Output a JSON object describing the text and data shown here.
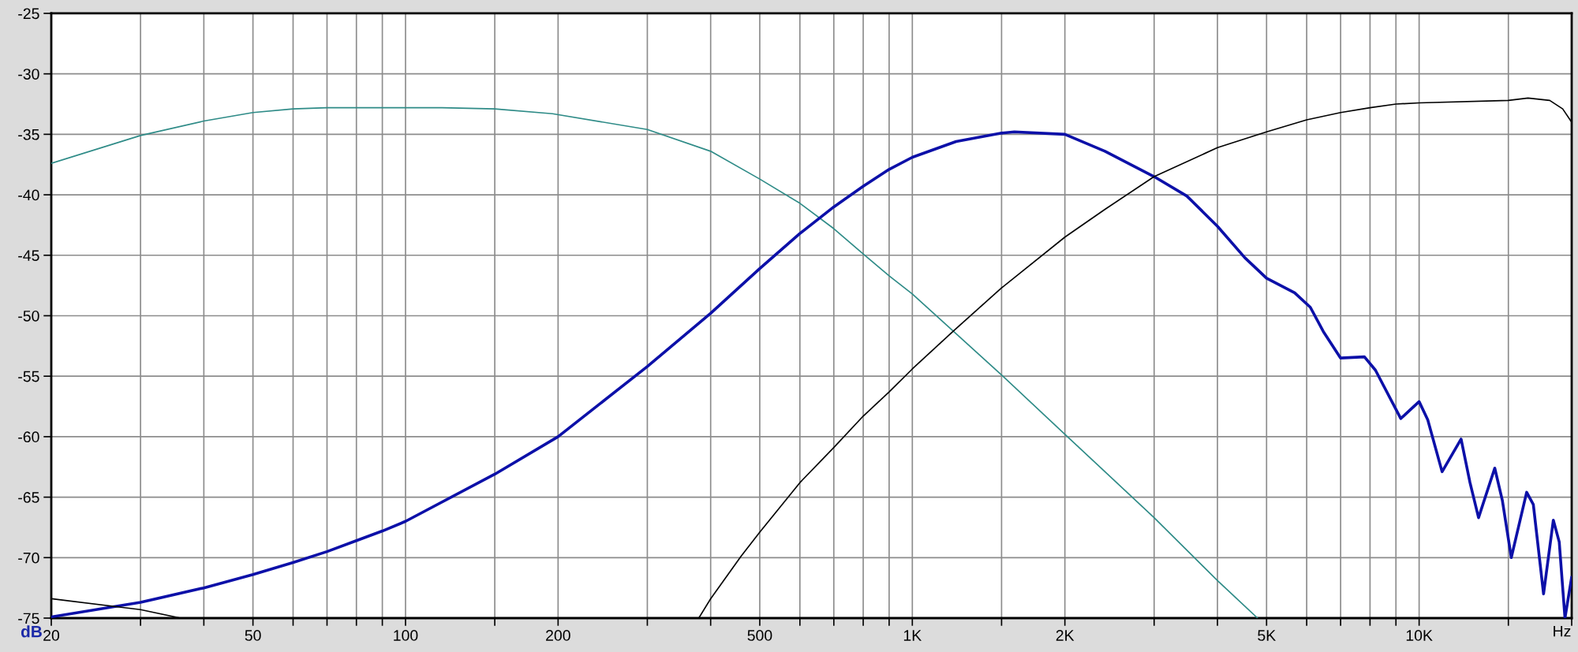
{
  "chart_data": {
    "type": "line",
    "xlabel": "Hz",
    "ylabel": "dB",
    "log": "x",
    "grid": true,
    "xlim": [
      20,
      20000
    ],
    "ylim": [
      -75,
      -25
    ],
    "xticks": [
      20,
      {
        "value": 30,
        "label": null
      },
      {
        "value": 40,
        "label": null
      },
      50,
      {
        "value": 60,
        "label": null
      },
      {
        "value": 70,
        "label": null
      },
      {
        "value": 80,
        "label": null
      },
      {
        "value": 90,
        "label": null
      },
      100,
      {
        "value": 150,
        "label": null
      },
      200,
      {
        "value": 300,
        "label": null
      },
      {
        "value": 400,
        "label": null
      },
      500,
      {
        "value": 600,
        "label": null
      },
      {
        "value": 700,
        "label": null
      },
      {
        "value": 800,
        "label": null
      },
      {
        "value": 900,
        "label": null
      },
      {
        "value": 1000,
        "label": "1K"
      },
      {
        "value": 1500,
        "label": null
      },
      {
        "value": 2000,
        "label": "2K"
      },
      {
        "value": 3000,
        "label": null
      },
      {
        "value": 4000,
        "label": null
      },
      {
        "value": 5000,
        "label": "5K"
      },
      {
        "value": 6000,
        "label": null
      },
      {
        "value": 7000,
        "label": null
      },
      {
        "value": 8000,
        "label": null
      },
      {
        "value": 9000,
        "label": null
      },
      {
        "value": 10000,
        "label": "10K"
      },
      {
        "value": 15000,
        "label": null
      },
      {
        "value": 20000,
        "label": null
      }
    ],
    "yticks": [
      -25,
      -30,
      -35,
      -40,
      -45,
      -50,
      -55,
      -60,
      -65,
      -70,
      -75
    ],
    "series": [
      {
        "color": "#2e8b87",
        "x": [
          20,
          30,
          40,
          50,
          60,
          70,
          100,
          118,
          150,
          195,
          300,
          400,
          500,
          600,
          700,
          800,
          900,
          1000,
          1500,
          2000,
          2400,
          3000,
          4000,
          4800
        ],
        "values": [
          -37.4,
          -35.1,
          -33.9,
          -33.2,
          -32.9,
          -32.8,
          -32.8,
          -32.8,
          -32.9,
          -33.3,
          -34.6,
          -36.4,
          -38.7,
          -40.7,
          -42.8,
          -44.9,
          -46.7,
          -48.2,
          -54.9,
          -59.8,
          -62.9,
          -66.7,
          -71.9,
          -75
        ]
      },
      {
        "color": "#0c10a8",
        "x": [
          20,
          30,
          40,
          50,
          60,
          70,
          80,
          90,
          100,
          150,
          200,
          300,
          400,
          500,
          600,
          700,
          800,
          900,
          1000,
          1220,
          1500,
          1590,
          2000,
          2400,
          3000,
          3480,
          4000,
          4530,
          5000,
          5680,
          6100,
          6470,
          7000,
          7800,
          8200,
          9200,
          10000,
          10400,
          11100,
          12100,
          12600,
          13100,
          14100,
          14600,
          15200,
          16300,
          16800,
          17600,
          18400,
          18900,
          19400,
          20000
        ],
        "values": [
          -74.9,
          -73.7,
          -72.5,
          -71.4,
          -70.4,
          -69.5,
          -68.6,
          -67.8,
          -67.0,
          -63.1,
          -60.0,
          -54.2,
          -49.8,
          -46.1,
          -43.2,
          -41.0,
          -39.3,
          -37.9,
          -36.9,
          -35.6,
          -34.9,
          -34.8,
          -35.0,
          -36.4,
          -38.5,
          -40.1,
          -42.6,
          -45.2,
          -46.9,
          -48.1,
          -49.3,
          -51.3,
          -53.5,
          -53.4,
          -54.5,
          -58.5,
          -57.1,
          -58.6,
          -62.9,
          -60.2,
          -63.8,
          -66.7,
          -62.6,
          -65.3,
          -70.0,
          -64.6,
          -65.6,
          -73.0,
          -66.9,
          -68.7,
          -75.0,
          -71.6
        ]
      },
      {
        "color": "#000000",
        "x": [
          20,
          30,
          36,
          100,
          379,
          400,
          459,
          500,
          600,
          700,
          800,
          900,
          1000,
          1210,
          1500,
          2000,
          2400,
          3000,
          4000,
          5000,
          6000,
          7000,
          8000,
          9000,
          10000,
          15000,
          16400,
          18100,
          19200,
          20000
        ],
        "values": [
          -73.4,
          -74.3,
          -75,
          null,
          -75,
          -73.4,
          -69.9,
          -67.9,
          -63.8,
          -60.9,
          -58.3,
          -56.3,
          -54.4,
          -51.2,
          -47.7,
          -43.5,
          -41.2,
          -38.5,
          -36.1,
          -34.8,
          -33.8,
          -33.2,
          -32.8,
          -32.5,
          -32.4,
          -32.2,
          -32.0,
          -32.2,
          -32.9,
          -34.0
        ]
      }
    ]
  }
}
